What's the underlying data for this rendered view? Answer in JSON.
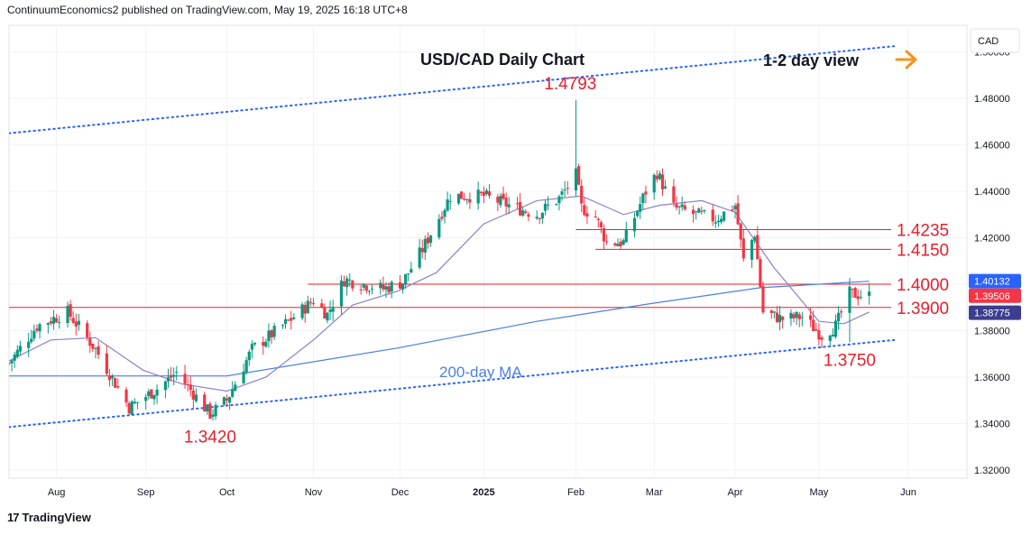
{
  "header": {
    "publisher": "ContinuumEconomics2 published on TradingView.com, May 19, 2025 16:18 UTC+8"
  },
  "footer": {
    "brand": "TradingView"
  },
  "colors": {
    "up": "#089981",
    "down": "#f23645",
    "resistance": "#e5202d",
    "ma_short": "#8a82c9",
    "ma_200": "#4c7fe6",
    "arrow": "#f7931a"
  },
  "chart_data": {
    "type": "candlestick",
    "title": "USD/CAD Daily Chart",
    "currency": "CAD",
    "view_label": "1-2 day view",
    "ylim": [
      1.3165,
      1.5115
    ],
    "y_ticks": [
      "1.50000",
      "1.48000",
      "1.46000",
      "1.44000",
      "1.42000",
      "1.40000",
      "1.38000",
      "1.36000",
      "1.34000",
      "1.32000"
    ],
    "y_tick_values": [
      1.5,
      1.48,
      1.46,
      1.44,
      1.42,
      1.4,
      1.38,
      1.36,
      1.34,
      1.32
    ],
    "x_ticks": [
      {
        "label": "Aug",
        "date": "2024-08-01"
      },
      {
        "label": "Sep",
        "date": "2024-09-02"
      },
      {
        "label": "Oct",
        "date": "2024-10-01"
      },
      {
        "label": "Nov",
        "date": "2024-11-01"
      },
      {
        "label": "Dec",
        "date": "2024-12-02"
      },
      {
        "label": "2025",
        "date": "2025-01-01"
      },
      {
        "label": "Feb",
        "date": "2025-02-03"
      },
      {
        "label": "Mar",
        "date": "2025-03-03"
      },
      {
        "label": "Apr",
        "date": "2025-04-01"
      },
      {
        "label": "May",
        "date": "2025-05-01"
      },
      {
        "label": "Jun",
        "date": "2025-06-02"
      }
    ],
    "x_range": [
      "2024-07-15",
      "2025-06-23"
    ],
    "price_path": [
      [
        "2024-07-15",
        1.366
      ],
      [
        "2024-07-25",
        1.382
      ],
      [
        "2024-08-05",
        1.388
      ],
      [
        "2024-08-15",
        1.372
      ],
      [
        "2024-08-27",
        1.347
      ],
      [
        "2024-09-06",
        1.355
      ],
      [
        "2024-09-13",
        1.362
      ],
      [
        "2024-09-25",
        1.344
      ],
      [
        "2024-10-01",
        1.35
      ],
      [
        "2024-10-10",
        1.372
      ],
      [
        "2024-10-22",
        1.383
      ],
      [
        "2024-11-01",
        1.393
      ],
      [
        "2024-11-06",
        1.387
      ],
      [
        "2024-11-12",
        1.402
      ],
      [
        "2024-11-26",
        1.398
      ],
      [
        "2024-12-03",
        1.401
      ],
      [
        "2024-12-10",
        1.415
      ],
      [
        "2024-12-20",
        1.438
      ],
      [
        "2025-01-01",
        1.438
      ],
      [
        "2025-01-10",
        1.434
      ],
      [
        "2025-01-20",
        1.43
      ],
      [
        "2025-01-28",
        1.437
      ],
      [
        "2025-02-03",
        1.447
      ],
      [
        "2025-02-05",
        1.433
      ],
      [
        "2025-02-10",
        1.429
      ],
      [
        "2025-02-14",
        1.418
      ],
      [
        "2025-02-20",
        1.418
      ],
      [
        "2025-02-28",
        1.44
      ],
      [
        "2025-03-04",
        1.448
      ],
      [
        "2025-03-10",
        1.433
      ],
      [
        "2025-03-18",
        1.43
      ],
      [
        "2025-03-25",
        1.428
      ],
      [
        "2025-04-01",
        1.434
      ],
      [
        "2025-04-04",
        1.41
      ],
      [
        "2025-04-08",
        1.422
      ],
      [
        "2025-04-11",
        1.388
      ],
      [
        "2025-04-18",
        1.385
      ],
      [
        "2025-04-25",
        1.386
      ],
      [
        "2025-05-02",
        1.378
      ],
      [
        "2025-05-07",
        1.382
      ],
      [
        "2025-05-12",
        1.396
      ],
      [
        "2025-05-19",
        1.395
      ]
    ],
    "ma_short": [
      [
        "2024-07-15",
        1.367
      ],
      [
        "2024-07-30",
        1.376
      ],
      [
        "2024-08-15",
        1.377
      ],
      [
        "2024-09-01",
        1.363
      ],
      [
        "2024-09-15",
        1.357
      ],
      [
        "2024-10-01",
        1.354
      ],
      [
        "2024-10-15",
        1.36
      ],
      [
        "2024-11-01",
        1.376
      ],
      [
        "2024-11-15",
        1.391
      ],
      [
        "2024-12-01",
        1.397
      ],
      [
        "2024-12-15",
        1.405
      ],
      [
        "2025-01-01",
        1.426
      ],
      [
        "2025-01-20",
        1.436
      ],
      [
        "2025-02-05",
        1.438
      ],
      [
        "2025-02-20",
        1.43
      ],
      [
        "2025-03-05",
        1.434
      ],
      [
        "2025-03-20",
        1.436
      ],
      [
        "2025-04-01",
        1.431
      ],
      [
        "2025-04-15",
        1.407
      ],
      [
        "2025-05-01",
        1.384
      ],
      [
        "2025-05-10",
        1.383
      ],
      [
        "2025-05-19",
        1.388
      ]
    ],
    "ma_200": {
      "label": "200-day MA",
      "points": [
        [
          "2024-07-15",
          1.3605
        ],
        [
          "2024-08-15",
          1.3605
        ],
        [
          "2024-10-01",
          1.3605
        ],
        [
          "2024-12-01",
          1.3725
        ],
        [
          "2025-01-20",
          1.384
        ],
        [
          "2025-03-01",
          1.3915
        ],
        [
          "2025-04-10",
          1.3985
        ],
        [
          "2025-05-19",
          1.4013
        ]
      ]
    },
    "channel": {
      "upper": [
        [
          "2024-07-15",
          1.465
        ],
        [
          "2025-05-28",
          1.5025
        ]
      ],
      "lower": [
        [
          "2024-07-15",
          1.3385
        ],
        [
          "2025-05-28",
          1.376
        ]
      ]
    },
    "levels": [
      {
        "label": "1.4235",
        "value": 1.4235,
        "from": "2025-02-03"
      },
      {
        "label": "1.4150",
        "value": 1.415,
        "from": "2025-02-10"
      },
      {
        "label": "1.4000",
        "value": 1.4,
        "from": "2024-10-30"
      },
      {
        "label": "1.3900",
        "value": 1.39,
        "from": "2024-07-15"
      }
    ],
    "annotations": [
      {
        "label": "1.4793",
        "date": "2025-02-01",
        "value": 1.4793,
        "anchor": "above"
      },
      {
        "label": "1.3420",
        "date": "2024-09-25",
        "value": 1.342,
        "anchor": "below"
      },
      {
        "label": "1.3750",
        "date": "2025-05-12",
        "value": 1.375,
        "anchor": "below"
      }
    ],
    "price_badges": [
      {
        "label": "1.40132",
        "value": 1.40132,
        "color": "#2962ff"
      },
      {
        "label": "1.39506",
        "value": 1.39506,
        "color": "#f23645"
      },
      {
        "label": "1.38775",
        "value": 1.38775,
        "color": "#3d3d8f"
      }
    ]
  }
}
